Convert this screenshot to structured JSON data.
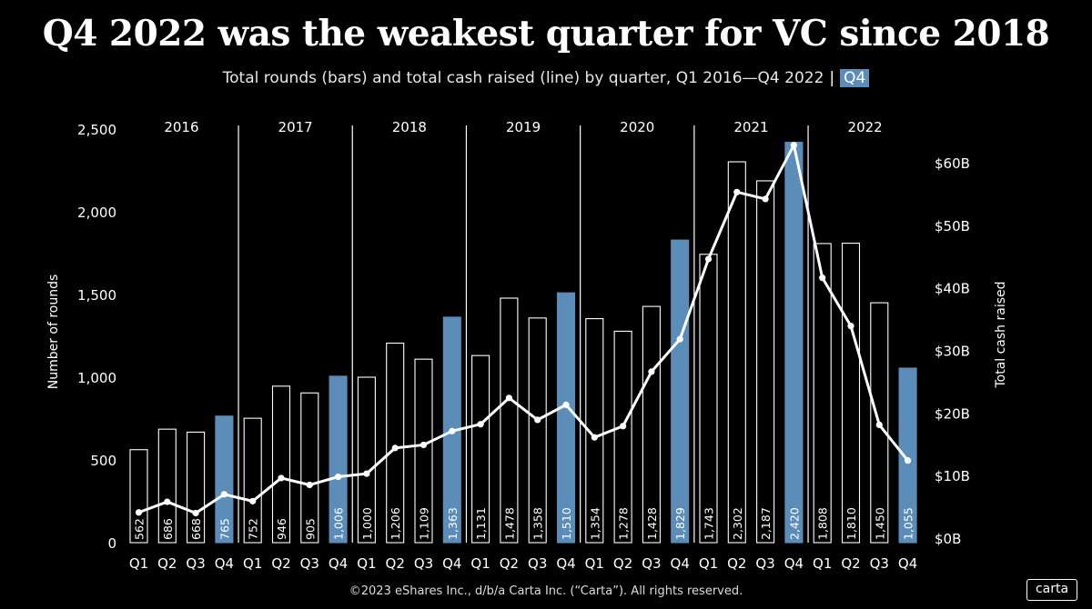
{
  "header": {
    "title": "Q4 2022 was the weakest quarter for VC since 2018",
    "subtitle": "Total rounds (bars) and total cash raised (line) by quarter, Q1 2016—Q4 2022",
    "subtitle_sep": "|",
    "subtitle_tag": "Q4"
  },
  "footer": {
    "copyright": "©2023 eShares Inc., d/b/a Carta Inc. (“Carta”). All rights reserved.",
    "logo_text": "carta"
  },
  "colors": {
    "background": "#000000",
    "q4_bar": "#5b8db8",
    "other_bar_outline": "#ffffff",
    "line": "#ffffff"
  },
  "chart_data": {
    "type": "bar",
    "years": [
      "2016",
      "2017",
      "2018",
      "2019",
      "2020",
      "2021",
      "2022"
    ],
    "categories": [
      "Q1",
      "Q2",
      "Q3",
      "Q4",
      "Q1",
      "Q2",
      "Q3",
      "Q4",
      "Q1",
      "Q2",
      "Q3",
      "Q4",
      "Q1",
      "Q2",
      "Q3",
      "Q4",
      "Q1",
      "Q2",
      "Q3",
      "Q4",
      "Q1",
      "Q2",
      "Q3",
      "Q4",
      "Q1",
      "Q2",
      "Q3",
      "Q4"
    ],
    "series": [
      {
        "type": "bar",
        "values": [
          562,
          686,
          668,
          765,
          752,
          946,
          905,
          1006,
          1000,
          1206,
          1109,
          1363,
          1131,
          1478,
          1358,
          1510,
          1354,
          1278,
          1428,
          1829,
          1743,
          2302,
          2187,
          2420,
          1808,
          1810,
          1450,
          1055
        ],
        "labels": [
          "562",
          "686",
          "668",
          "765",
          "752",
          "946",
          "905",
          "1,006",
          "1,000",
          "1,206",
          "1,109",
          "1,363",
          "1,131",
          "1,478",
          "1,358",
          "1,510",
          "1,354",
          "1,278",
          "1,428",
          "1,829",
          "1,743",
          "2,302",
          "2,187",
          "2,420",
          "1,808",
          "1,810",
          "1,450",
          "1,055"
        ]
      },
      {
        "type": "line",
        "axis": "right",
        "unit": "B",
        "values": [
          4.1,
          5.8,
          4.0,
          7.0,
          5.9,
          9.6,
          8.5,
          9.8,
          10.3,
          14.4,
          14.9,
          17.1,
          18.2,
          22.4,
          18.9,
          21.3,
          16.1,
          17.9,
          26.6,
          31.8,
          44.6,
          55.3,
          54.2,
          62.8,
          41.6,
          33.9,
          18.1,
          12.4
        ]
      }
    ],
    "ylabel": "Number of rounds",
    "ylabel_right": "Total cash raised",
    "ylim": [
      0,
      2500
    ],
    "ylim_right": [
      0,
      67
    ],
    "yticks": [
      "0",
      "500",
      "1,000",
      "1,500",
      "2,000",
      "2,500"
    ],
    "yticks_right": [
      "$0B",
      "$10B",
      "$20B",
      "$30B",
      "$40B",
      "$50B",
      "$60B"
    ],
    "grid": false,
    "legend": "none"
  }
}
